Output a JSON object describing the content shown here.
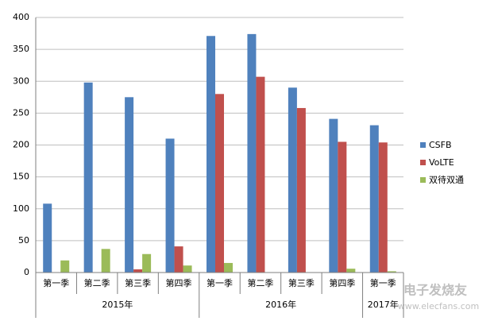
{
  "chart_data": {
    "type": "bar",
    "groups": [
      {
        "label": "2015年",
        "categories": [
          "第一季",
          "第二季",
          "第三季",
          "第四季"
        ]
      },
      {
        "label": "2016年",
        "categories": [
          "第一季",
          "第二季",
          "第三季",
          "第四季"
        ]
      },
      {
        "label": "2017年",
        "categories": [
          "第一季"
        ]
      }
    ],
    "series": [
      {
        "name": "CSFB",
        "color": "#4f81bd",
        "values": [
          108,
          298,
          275,
          210,
          371,
          374,
          290,
          241,
          231
        ]
      },
      {
        "name": "VoLTE",
        "color": "#c0504d",
        "values": [
          0,
          0,
          5,
          41,
          280,
          307,
          258,
          205,
          204
        ]
      },
      {
        "name": "双待双通",
        "color": "#9bbb59",
        "values": [
          19,
          37,
          29,
          11,
          15,
          0,
          0,
          6,
          2
        ]
      }
    ],
    "ylim": [
      0,
      400
    ],
    "yticks": [
      0,
      50,
      100,
      150,
      200,
      250,
      300,
      350,
      400
    ],
    "grid": true,
    "legend": "right",
    "watermark": {
      "brand": "电子发烧友",
      "url": "www.elecfans.com"
    }
  }
}
